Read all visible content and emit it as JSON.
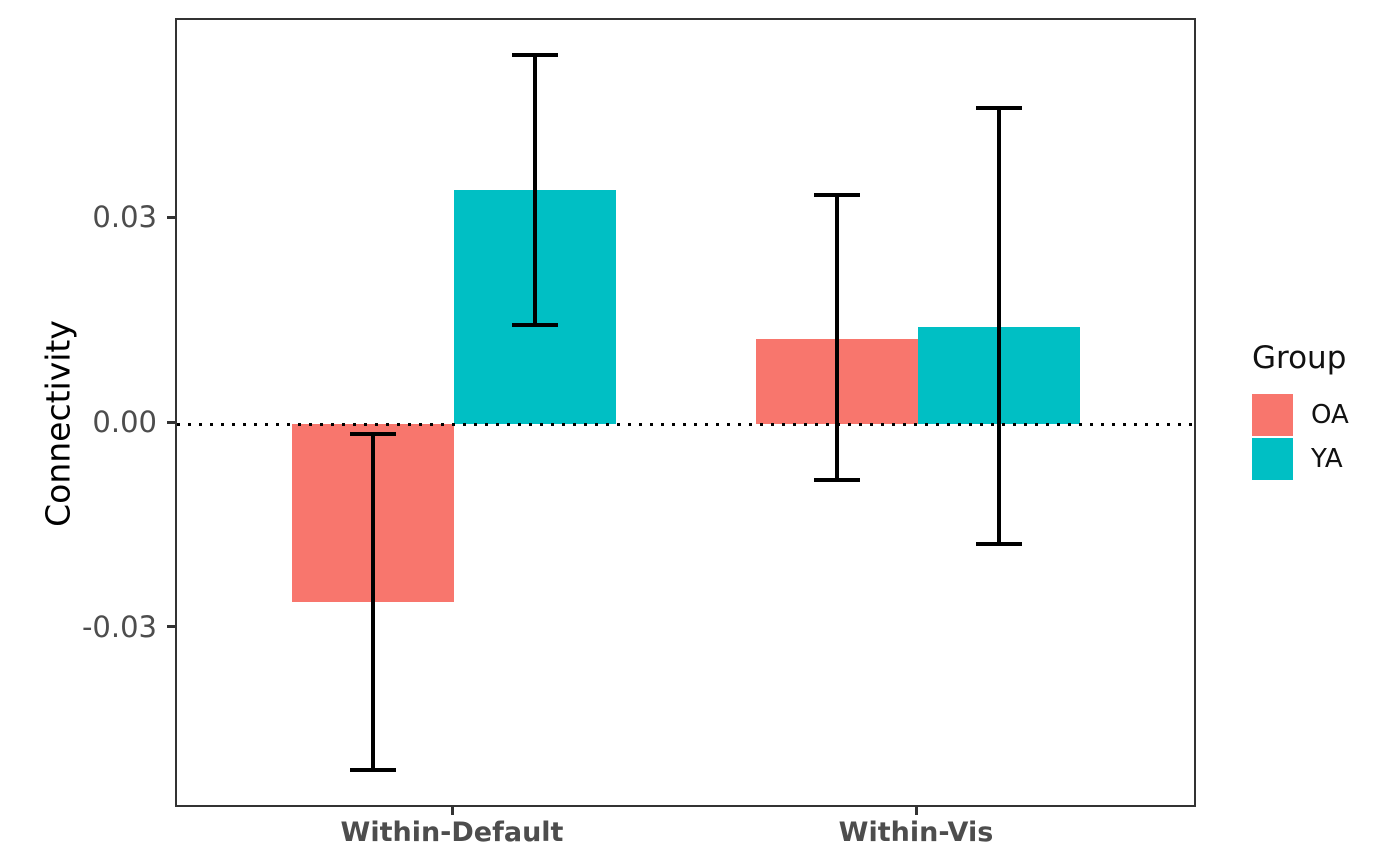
{
  "chart_data": {
    "type": "bar",
    "title": "",
    "xlabel": "",
    "ylabel": "Connectivity",
    "categories": [
      "Within-Default",
      "Within-Vis"
    ],
    "series": [
      {
        "name": "OA",
        "color": "#F8766D",
        "values": [
          -0.026,
          0.0124
        ],
        "ci_low": [
          -0.0506,
          -0.0082
        ],
        "ci_high": [
          -0.0015,
          0.0335
        ]
      },
      {
        "name": "YA",
        "color": "#00BFC4",
        "values": [
          0.0342,
          0.0142
        ],
        "ci_low": [
          0.0145,
          -0.0176
        ],
        "ci_high": [
          0.054,
          0.0462
        ]
      }
    ],
    "y_ticks": [
      0.03,
      0.0,
      -0.03
    ],
    "y_tick_labels": [
      "0.03",
      "0.00",
      "-0.03"
    ],
    "ylim": [
      -0.0558,
      0.0591
    ],
    "zero_reference_line": {
      "y": 0,
      "style": "dotted",
      "color": "#000000"
    },
    "grid": false,
    "bar_mode": "dodged",
    "error_bars": true,
    "legend": {
      "title": "Group",
      "position": "right",
      "entries": [
        {
          "label": "OA",
          "color": "#F8766D"
        },
        {
          "label": "YA",
          "color": "#00BFC4"
        }
      ]
    }
  }
}
